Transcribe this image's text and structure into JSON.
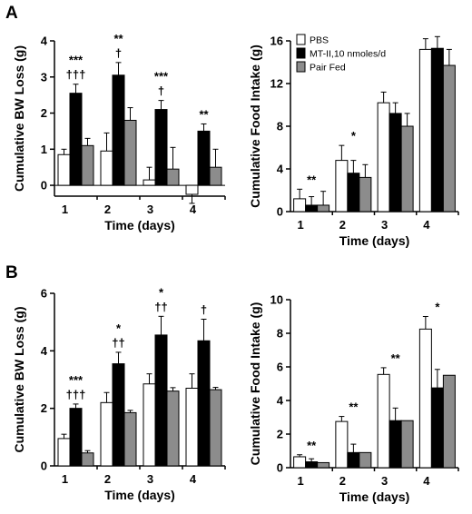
{
  "panel_labels": [
    "A",
    "B"
  ],
  "legend": {
    "items": [
      {
        "label": "PBS",
        "color": "#ffffff"
      },
      {
        "label": "MT-II,10 nmoles/d",
        "color": "#000000"
      },
      {
        "label": "Pair Fed",
        "color": "#8c8c8c"
      }
    ]
  },
  "chart_data": [
    {
      "type": "bar",
      "panel": "A",
      "xlabel": "Time (days)",
      "ylabel": "Cumulative BW Loss (g)",
      "ylim": [
        -0.3,
        4
      ],
      "yticks": [
        0,
        1,
        2,
        3,
        4
      ],
      "categories": [
        "1",
        "2",
        "3",
        "4"
      ],
      "series": [
        {
          "name": "PBS",
          "values": [
            0.85,
            0.95,
            0.15,
            -0.25
          ],
          "errors": [
            0.15,
            0.5,
            0.35,
            0.25
          ]
        },
        {
          "name": "MT-II,10 nmoles/d",
          "values": [
            2.55,
            3.05,
            2.1,
            1.5
          ],
          "errors": [
            0.25,
            0.35,
            0.25,
            0.2
          ]
        },
        {
          "name": "Pair Fed",
          "values": [
            1.1,
            1.8,
            0.45,
            0.5
          ],
          "errors": [
            0.2,
            0.35,
            0.6,
            0.5
          ]
        }
      ],
      "annotations": [
        {
          "category": "1",
          "lines": [
            "***",
            "†††"
          ]
        },
        {
          "category": "2",
          "lines": [
            "**",
            "†"
          ]
        },
        {
          "category": "3",
          "lines": [
            "***",
            "†"
          ]
        },
        {
          "category": "4",
          "lines": [
            "**"
          ]
        }
      ]
    },
    {
      "type": "bar",
      "panel": "A",
      "xlabel": "Time (days)",
      "ylabel": "Cumulative Food Intake (g)",
      "ylim": [
        0,
        16
      ],
      "yticks": [
        0,
        4,
        8,
        12,
        16
      ],
      "categories": [
        "1",
        "2",
        "3",
        "4"
      ],
      "series": [
        {
          "name": "PBS",
          "values": [
            1.2,
            4.8,
            10.2,
            15.2
          ],
          "errors": [
            0.9,
            1.4,
            1.0,
            1.0
          ]
        },
        {
          "name": "MT-II,10 nmoles/d",
          "values": [
            0.6,
            3.6,
            9.2,
            15.3
          ],
          "errors": [
            0.8,
            1.2,
            1.0,
            1.1
          ]
        },
        {
          "name": "Pair Fed",
          "values": [
            0.6,
            3.2,
            8.0,
            13.7
          ],
          "errors": [
            1.3,
            1.2,
            1.2,
            1.5
          ]
        }
      ],
      "annotations": [
        {
          "category": "1",
          "lines": [
            "**"
          ]
        },
        {
          "category": "2",
          "lines": [
            "*"
          ]
        }
      ]
    },
    {
      "type": "bar",
      "panel": "B",
      "xlabel": "Time (days)",
      "ylabel": "Cumulative BW Loss (g)",
      "ylim": [
        0,
        6
      ],
      "yticks": [
        0,
        2,
        4,
        6
      ],
      "categories": [
        "1",
        "2",
        "3",
        "4"
      ],
      "series": [
        {
          "name": "PBS",
          "values": [
            0.95,
            2.2,
            2.85,
            2.7
          ],
          "errors": [
            0.15,
            0.35,
            0.35,
            0.5
          ]
        },
        {
          "name": "MT-II,10 nmoles/d",
          "values": [
            2.0,
            3.55,
            4.55,
            4.35
          ],
          "errors": [
            0.15,
            0.4,
            0.65,
            0.75
          ]
        },
        {
          "name": "Pair Fed",
          "values": [
            0.45,
            1.85,
            2.6,
            2.65
          ],
          "errors": [
            0.08,
            0.08,
            0.12,
            0.08
          ]
        }
      ],
      "annotations": [
        {
          "category": "1",
          "lines": [
            "***",
            "†††"
          ]
        },
        {
          "category": "2",
          "lines": [
            "*",
            "††"
          ]
        },
        {
          "category": "3",
          "lines": [
            "*",
            "††"
          ]
        },
        {
          "category": "4",
          "lines": [
            "†"
          ]
        }
      ]
    },
    {
      "type": "bar",
      "panel": "B",
      "xlabel": "Time (days)",
      "ylabel": "Cumulative Food Intake (g)",
      "ylim": [
        0,
        10
      ],
      "yticks": [
        0,
        2,
        4,
        6,
        8,
        10
      ],
      "categories": [
        "1",
        "2",
        "3",
        "4"
      ],
      "series": [
        {
          "name": "PBS",
          "values": [
            0.65,
            2.75,
            5.55,
            8.25
          ],
          "errors": [
            0.12,
            0.3,
            0.4,
            0.75
          ]
        },
        {
          "name": "MT-II,10 nmoles/d",
          "values": [
            0.35,
            0.9,
            2.8,
            4.75
          ],
          "errors": [
            0.18,
            0.5,
            0.75,
            1.1
          ]
        },
        {
          "name": "Pair Fed",
          "values": [
            0.3,
            0.9,
            2.8,
            5.5
          ],
          "errors": [
            0.0,
            0.0,
            0.0,
            0.0
          ]
        }
      ],
      "annotations": [
        {
          "category": "1",
          "lines": [
            "**"
          ]
        },
        {
          "category": "2",
          "lines": [
            "**"
          ]
        },
        {
          "category": "3",
          "lines": [
            "**"
          ]
        },
        {
          "category": "4",
          "lines": [
            "*"
          ]
        }
      ]
    }
  ]
}
